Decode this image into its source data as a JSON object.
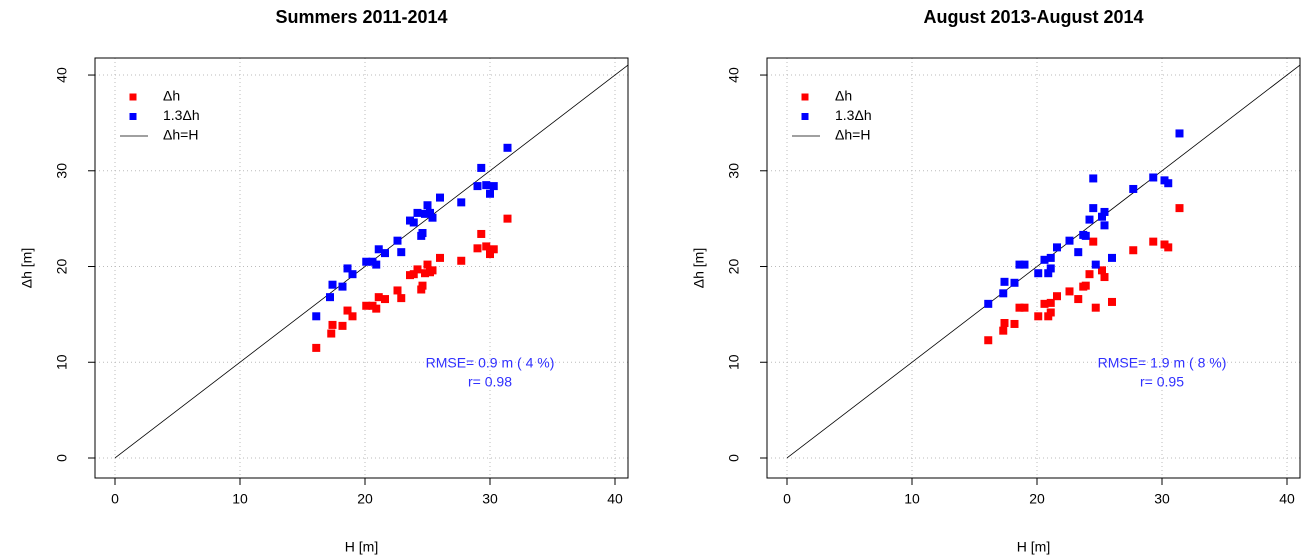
{
  "chart_data": [
    {
      "type": "scatter",
      "title": "Summers 2011-2014",
      "x_label": "H [m]",
      "y_label": "Δh [m]",
      "xlim": [
        -1.6,
        41.04
      ],
      "ylim": [
        -2.09,
        41.78
      ],
      "xticks": [
        0,
        10,
        20,
        30,
        40
      ],
      "yticks": [
        0,
        10,
        20,
        30,
        40
      ],
      "grid": true,
      "legend": "top-left",
      "series": [
        {
          "name": "Δh",
          "color": "#ff0000",
          "x": [
            16.1,
            17.3,
            17.4,
            18.2,
            18.6,
            19.0,
            20.1,
            20.6,
            20.9,
            21.1,
            21.6,
            22.6,
            22.9,
            23.6,
            23.9,
            24.2,
            24.5,
            24.6,
            24.8,
            25.0,
            25.2,
            25.4,
            26.0,
            27.7,
            29.0,
            29.3,
            29.7,
            30.0,
            30.3,
            31.4
          ],
          "values": [
            11.5,
            13.0,
            13.9,
            13.8,
            15.4,
            14.8,
            15.9,
            15.9,
            15.6,
            16.8,
            16.6,
            17.5,
            16.7,
            19.1,
            19.2,
            19.7,
            17.6,
            18.0,
            19.3,
            20.2,
            19.4,
            19.6,
            20.9,
            20.6,
            21.9,
            23.4,
            22.1,
            21.3,
            21.8,
            25.0
          ]
        },
        {
          "name": "1.3Δh",
          "color": "#0000ff",
          "x": [
            16.1,
            17.2,
            17.4,
            18.2,
            18.6,
            19.0,
            20.1,
            20.6,
            20.9,
            21.1,
            21.6,
            22.6,
            22.9,
            23.6,
            23.9,
            24.2,
            24.5,
            24.6,
            24.8,
            25.0,
            25.2,
            25.4,
            26.0,
            27.7,
            29.0,
            29.3,
            29.7,
            30.0,
            30.3,
            31.4
          ],
          "values": [
            14.8,
            16.8,
            18.1,
            17.9,
            19.8,
            19.2,
            20.5,
            20.5,
            20.2,
            21.8,
            21.4,
            22.7,
            21.5,
            24.8,
            24.6,
            25.6,
            23.2,
            23.5,
            25.5,
            26.4,
            25.6,
            25.1,
            27.2,
            26.7,
            28.4,
            30.3,
            28.5,
            27.6,
            28.4,
            32.4
          ]
        }
      ],
      "identity_line": {
        "name": "Δh=H",
        "color": "#000000"
      },
      "annotations": [
        "RMSE= 0.9 m ( 4 %)",
        "r= 0.98"
      ],
      "annotation_color": "#3030ff"
    },
    {
      "type": "scatter",
      "title": "August 2013-August 2014",
      "x_label": "H [m]",
      "y_label": "Δh [m]",
      "xlim": [
        -1.6,
        41.04
      ],
      "ylim": [
        -2.09,
        41.78
      ],
      "xticks": [
        0,
        10,
        20,
        30,
        40
      ],
      "yticks": [
        0,
        10,
        20,
        30,
        40
      ],
      "grid": true,
      "legend": "top-left",
      "series": [
        {
          "name": "Δh",
          "color": "#ff0000",
          "x": [
            16.1,
            17.3,
            17.4,
            18.2,
            18.6,
            19.0,
            20.1,
            20.6,
            20.9,
            21.1,
            21.1,
            21.6,
            22.6,
            23.3,
            23.7,
            23.9,
            24.2,
            24.5,
            24.7,
            25.2,
            25.4,
            26.0,
            27.7,
            29.3,
            30.2,
            30.5,
            31.4
          ],
          "values": [
            12.3,
            13.3,
            14.1,
            14.0,
            15.7,
            15.7,
            14.8,
            16.1,
            14.8,
            16.2,
            15.2,
            16.9,
            17.4,
            16.6,
            17.9,
            18.0,
            19.2,
            22.6,
            15.7,
            19.6,
            18.9,
            16.3,
            21.7,
            22.6,
            22.3,
            22.0,
            26.1
          ]
        },
        {
          "name": "1.3Δh",
          "color": "#0000ff",
          "x": [
            16.1,
            17.3,
            17.4,
            18.2,
            18.6,
            19.0,
            20.1,
            20.6,
            20.9,
            21.1,
            21.1,
            21.6,
            22.6,
            23.3,
            23.7,
            23.9,
            24.2,
            24.5,
            24.5,
            24.7,
            25.2,
            25.4,
            25.4,
            26.0,
            27.7,
            29.3,
            30.2,
            30.5,
            31.4
          ],
          "values": [
            16.1,
            17.2,
            18.4,
            18.3,
            20.2,
            20.2,
            19.3,
            20.7,
            19.3,
            20.9,
            19.8,
            22.0,
            22.7,
            21.5,
            23.3,
            23.2,
            24.9,
            29.2,
            26.1,
            20.2,
            25.2,
            24.3,
            25.7,
            20.9,
            28.1,
            29.3,
            29.0,
            28.7,
            33.9
          ]
        }
      ],
      "identity_line": {
        "name": "Δh=H",
        "color": "#000000"
      },
      "annotations": [
        "RMSE= 1.9 m ( 8 %)",
        "r= 0.95"
      ],
      "annotation_color": "#3030ff"
    }
  ]
}
